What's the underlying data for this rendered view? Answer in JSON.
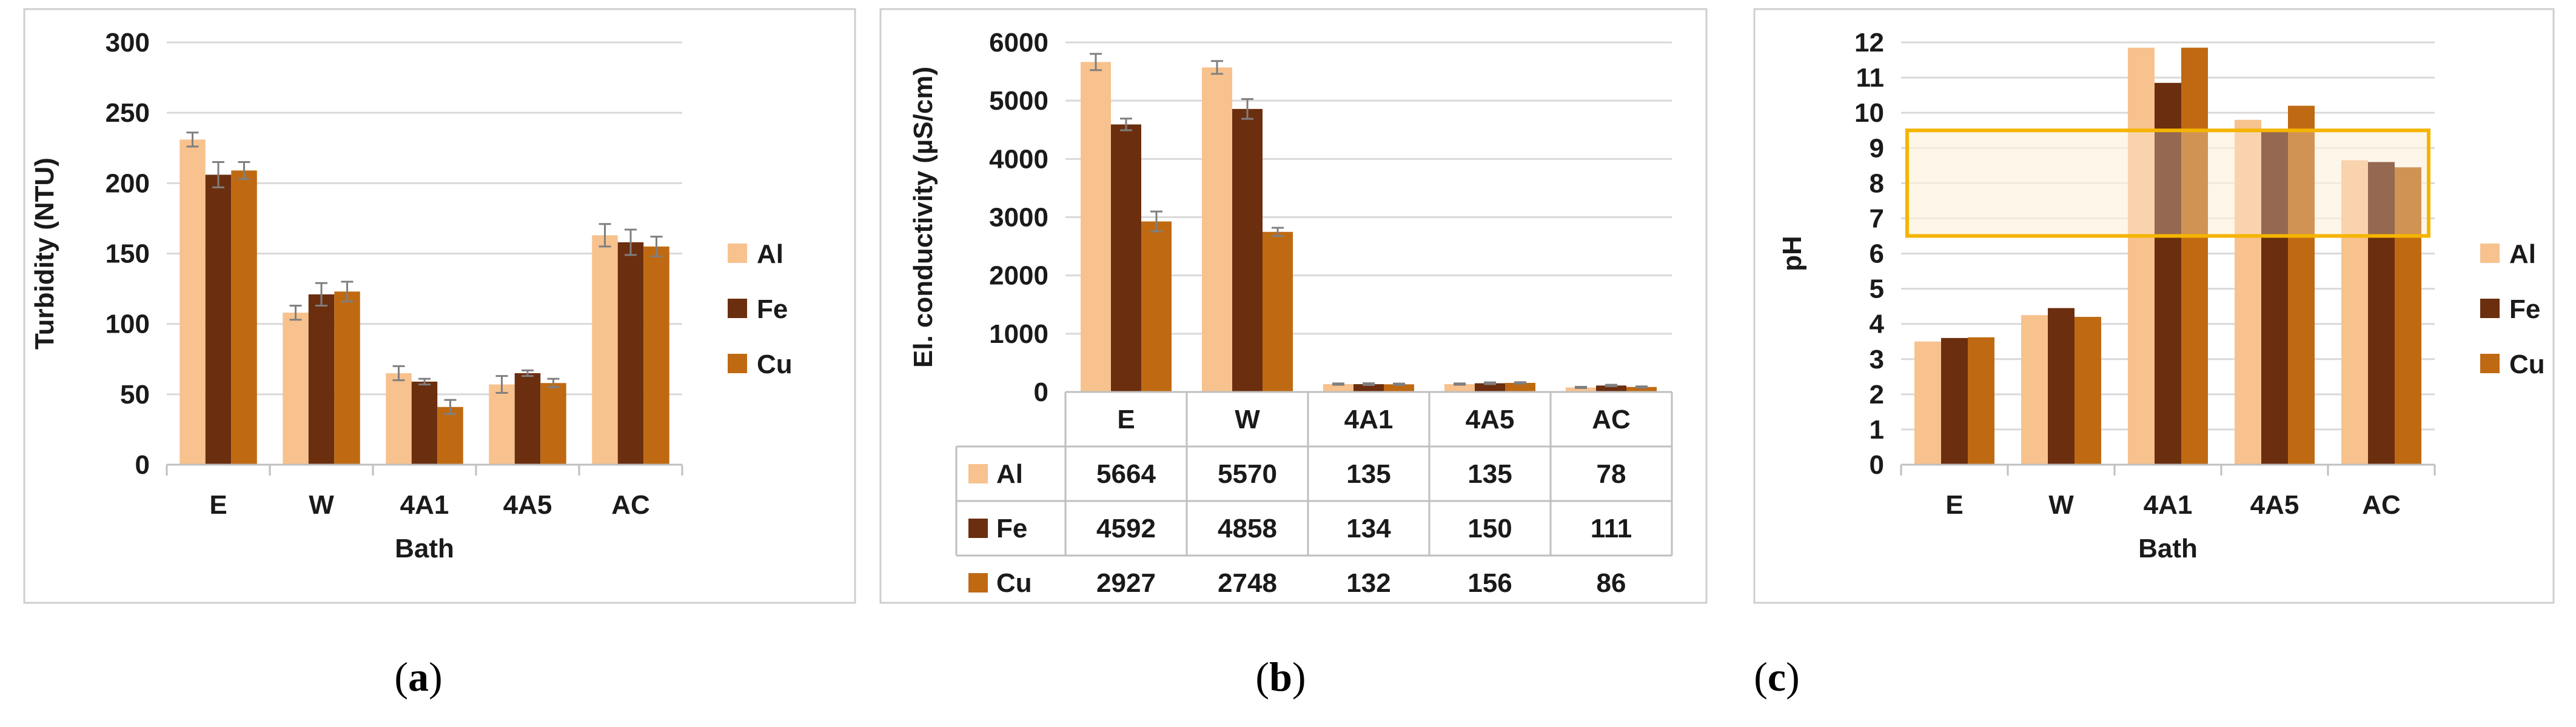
{
  "colors": {
    "Al": "#F7C28E",
    "Fe": "#6B2E0E",
    "Cu": "#BF6A13",
    "band": "#F5B400",
    "grid": "#d9d9d9",
    "err": "#7f7f7f"
  },
  "chart_data": [
    {
      "type": "bar",
      "panel": "a",
      "caption": {
        "open": "(",
        "letter": "a",
        "close": ")"
      },
      "title": "",
      "xlabel": "Bath",
      "ylabel": "Turbidity (NTU)",
      "categories": [
        "E",
        "W",
        "4A1",
        "4A5",
        "AC"
      ],
      "ylim": [
        0,
        300
      ],
      "yticks": [
        "0",
        "50",
        "100",
        "150",
        "200",
        "250",
        "300"
      ],
      "series": [
        {
          "name": "Al",
          "values": [
            231,
            108,
            65,
            57,
            163
          ],
          "errors": [
            5,
            5,
            5,
            6,
            8
          ]
        },
        {
          "name": "Fe",
          "values": [
            206,
            121,
            59,
            65,
            158
          ],
          "errors": [
            9,
            8,
            2,
            2,
            9
          ]
        },
        {
          "name": "Cu",
          "values": [
            209,
            123,
            41,
            58,
            155
          ],
          "errors": [
            6,
            7,
            5,
            3,
            7
          ]
        }
      ],
      "legend": [
        "Al",
        "Fe",
        "Cu"
      ]
    },
    {
      "type": "bar",
      "panel": "b",
      "caption": {
        "open": "(",
        "letter": "b",
        "close": ")"
      },
      "title": "",
      "xlabel": "",
      "ylabel": "El. conductivity (µS/cm)",
      "categories": [
        "E",
        "W",
        "4A1",
        "4A5",
        "AC"
      ],
      "ylim": [
        0,
        6000
      ],
      "yticks": [
        "0",
        "1000",
        "2000",
        "3000",
        "4000",
        "5000",
        "6000"
      ],
      "series": [
        {
          "name": "Al",
          "values": [
            5664,
            5570,
            135,
            135,
            78
          ],
          "errors": [
            140,
            110,
            12,
            12,
            10
          ]
        },
        {
          "name": "Fe",
          "values": [
            4592,
            4858,
            134,
            150,
            111
          ],
          "errors": [
            100,
            170,
            15,
            15,
            12
          ]
        },
        {
          "name": "Cu",
          "values": [
            2927,
            2748,
            132,
            156,
            86
          ],
          "errors": [
            170,
            70,
            12,
            12,
            10
          ]
        }
      ],
      "table": [
        {
          "name": "Al",
          "cells": [
            "5664",
            "5570",
            "135",
            "135",
            "78"
          ]
        },
        {
          "name": "Fe",
          "cells": [
            "4592",
            "4858",
            "134",
            "150",
            "111"
          ]
        },
        {
          "name": "Cu",
          "cells": [
            "2927",
            "2748",
            "132",
            "156",
            "86"
          ]
        }
      ]
    },
    {
      "type": "bar",
      "panel": "c",
      "caption": {
        "open": "(",
        "letter": "c",
        "close": ")"
      },
      "title": "",
      "xlabel": "Bath",
      "ylabel": "pH",
      "categories": [
        "E",
        "W",
        "4A1",
        "4A5",
        "AC"
      ],
      "ylim": [
        0,
        12
      ],
      "yticks": [
        "0",
        "1",
        "2",
        "3",
        "4",
        "5",
        "6",
        "7",
        "8",
        "9",
        "10",
        "11",
        "12"
      ],
      "series": [
        {
          "name": "Al",
          "values": [
            3.5,
            4.25,
            11.85,
            9.8,
            8.65
          ]
        },
        {
          "name": "Fe",
          "values": [
            3.6,
            4.45,
            10.85,
            9.5,
            8.6
          ]
        },
        {
          "name": "Cu",
          "values": [
            3.62,
            4.2,
            11.85,
            10.2,
            8.45
          ]
        }
      ],
      "highlight_band": [
        6.5,
        9.5
      ],
      "legend": [
        "Al",
        "Fe",
        "Cu"
      ]
    }
  ]
}
